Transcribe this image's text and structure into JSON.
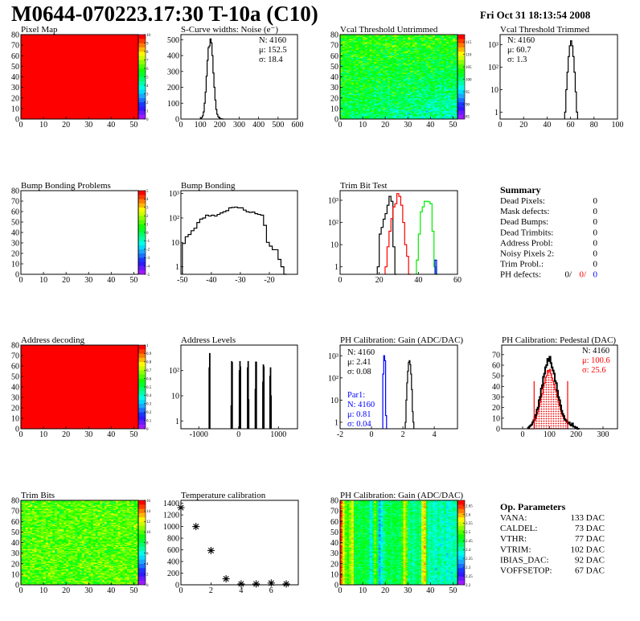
{
  "header": {
    "title": "M0644-070223.17:30 T-10a (C10)",
    "date": "Fri Oct 31 18:13:54 2008"
  },
  "summary": {
    "title": "Summary",
    "rows": [
      {
        "label": "Dead Pixels:",
        "value": "0"
      },
      {
        "label": "Mask defects:",
        "value": "0"
      },
      {
        "label": "Dead Bumps:",
        "value": "0"
      },
      {
        "label": "Dead Trimbits:",
        "value": "0"
      },
      {
        "label": "Address Probl:",
        "value": "0"
      },
      {
        "label": "Noisy Pixels 2:",
        "value": "0"
      },
      {
        "label": "Trim Probl.:",
        "value": "0"
      }
    ],
    "ph_defects": {
      "label": "PH defects:",
      "values": [
        "0/",
        "0/",
        "0"
      ],
      "colors": [
        "#000000",
        "#ff0000",
        "#0000ff"
      ]
    }
  },
  "op_parameters": {
    "title": "Op. Parameters",
    "rows": [
      {
        "label": "VANA:",
        "value": "133 DAC"
      },
      {
        "label": "CALDEL:",
        "value": "73 DAC"
      },
      {
        "label": "VTHR:",
        "value": "77 DAC"
      },
      {
        "label": "VTRIM:",
        "value": "102 DAC"
      },
      {
        "label": "IBIAS_DAC:",
        "value": "92 DAC"
      },
      {
        "label": "VOFFSETOP:",
        "value": "67 DAC"
      }
    ]
  },
  "chart_data": [
    {
      "type": "heatmap",
      "title": "Pixel Map",
      "xlim": [
        0,
        52
      ],
      "ylim": [
        0,
        80
      ],
      "xticks": [
        0,
        10,
        20,
        30,
        40,
        50
      ],
      "yticks": [
        0,
        10,
        20,
        30,
        40,
        50,
        60,
        70,
        80
      ],
      "zlim": [
        0,
        10
      ],
      "zticks": [
        0,
        1,
        2,
        3,
        4,
        5,
        6,
        7,
        8,
        9,
        10
      ],
      "fill": "uniform",
      "value": 10
    },
    {
      "type": "bar",
      "title": "S-Curve widths: Noise (e⁻)",
      "xlim": [
        0,
        600
      ],
      "ylim": [
        0,
        532
      ],
      "yscale": "linear",
      "xticks": [
        0,
        100,
        200,
        300,
        400,
        500,
        600
      ],
      "yticks": [
        0,
        100,
        200,
        300,
        400,
        500
      ],
      "series": [
        {
          "color": "#000000",
          "start": 100,
          "width": 5,
          "values": [
            3,
            8,
            20,
            45,
            100,
            170,
            270,
            370,
            450,
            460,
            505,
            480,
            400,
            290,
            200,
            120,
            60,
            30,
            15,
            8,
            4,
            2,
            1,
            0
          ]
        }
      ],
      "stats": [
        {
          "text": "N: 4160",
          "color": "#000000"
        },
        {
          "text": "μ: 152.5",
          "color": "#000000"
        },
        {
          "text": "σ: 18.4",
          "color": "#000000"
        }
      ]
    },
    {
      "type": "heatmap",
      "title": "Vcal Threshold Untrimmed",
      "xlim": [
        0,
        52
      ],
      "ylim": [
        0,
        80
      ],
      "xticks": [
        0,
        10,
        20,
        30,
        40,
        50
      ],
      "yticks": [
        0,
        10,
        20,
        30,
        40,
        50,
        60,
        70,
        80
      ],
      "zlim": [
        84,
        118
      ],
      "zticks": [
        85,
        90,
        95,
        100,
        105,
        110,
        115
      ],
      "fill": "map"
    },
    {
      "type": "bar",
      "title": "Vcal Threshold Trimmed",
      "xlim": [
        0,
        100
      ],
      "ylim": [
        0.49,
        2850
      ],
      "yscale": "log",
      "xticks": [
        0,
        20,
        40,
        60,
        80,
        100
      ],
      "yticks": [
        1,
        10,
        100,
        1000
      ],
      "ytick_labels": [
        "1",
        "10",
        "10²",
        "10³"
      ],
      "series": [
        {
          "color": "#000000",
          "start": 55,
          "width": 1,
          "values": [
            1,
            10,
            60,
            300,
            900,
            1500,
            900,
            300,
            60,
            8,
            1
          ]
        }
      ],
      "stats": [
        {
          "text": "N: 4160",
          "color": "#000000"
        },
        {
          "text": "μ: 60.7",
          "color": "#000000"
        },
        {
          "text": "σ:  1.3",
          "color": "#000000"
        }
      ]
    },
    {
      "type": "heatmap",
      "title": "Bump Bonding Problems",
      "xlim": [
        0,
        52
      ],
      "ylim": [
        0,
        80
      ],
      "xticks": [
        0,
        10,
        20,
        30,
        40,
        50
      ],
      "yticks": [
        0,
        10,
        20,
        30,
        40,
        50,
        60,
        70,
        80
      ],
      "zlim": [
        -5,
        5
      ],
      "zticks": [
        -5,
        -4,
        -3,
        -2,
        -1,
        0,
        1,
        2,
        3,
        4,
        5
      ],
      "fill": "empty"
    },
    {
      "type": "bar",
      "title": "Bump Bonding",
      "xlim": [
        -50.5,
        -10.3
      ],
      "ylim": [
        0.49,
        1320
      ],
      "yscale": "log",
      "xticks": [
        -50,
        -40,
        -30,
        -20
      ],
      "yticks": [
        1,
        10,
        100,
        1000
      ],
      "ytick_labels": [
        "1",
        "10",
        "10²",
        "10³"
      ],
      "series": [
        {
          "color": "#000000",
          "start": -50,
          "width": 1,
          "values": [
            9,
            17,
            21,
            30,
            38,
            65,
            90,
            100,
            130,
            120,
            130,
            120,
            140,
            160,
            180,
            200,
            260,
            270,
            280,
            260,
            260,
            210,
            180,
            170,
            175,
            150,
            140,
            130,
            50,
            10,
            7,
            5,
            5,
            2,
            1,
            0
          ]
        }
      ]
    },
    {
      "type": "bar",
      "title": "Trim Bit Test",
      "xlim": [
        0,
        60
      ],
      "ylim": [
        0.46,
        2720
      ],
      "yscale": "log",
      "xticks": [
        0,
        20,
        40,
        60
      ],
      "yticks": [
        1,
        10,
        100,
        1000
      ],
      "ytick_labels": [
        "1",
        "10",
        "10²",
        "10³"
      ],
      "series": [
        {
          "color": "#000000",
          "start": 19,
          "width": 1,
          "values": [
            1,
            30,
            60,
            140,
            250,
            600,
            1500,
            900,
            8,
            0
          ]
        },
        {
          "color": "#ff0000",
          "start": 23,
          "width": 1,
          "values": [
            1,
            8,
            40,
            150,
            500,
            700,
            2000,
            1500,
            600,
            100,
            10,
            3,
            0
          ]
        },
        {
          "color": "#00ee00",
          "start": 39,
          "width": 1,
          "values": [
            2,
            30,
            300,
            500,
            900,
            900,
            850,
            700,
            40,
            1,
            0
          ]
        },
        {
          "color": "#0000ff",
          "start": 48.5,
          "width": 0.8,
          "values": [
            2
          ]
        }
      ]
    },
    {
      "type": "heatmap",
      "title": "Address decoding",
      "xlim": [
        0,
        52
      ],
      "ylim": [
        0,
        80
      ],
      "xticks": [
        0,
        10,
        20,
        30,
        40,
        50
      ],
      "yticks": [
        0,
        10,
        20,
        30,
        40,
        50,
        60,
        70,
        80
      ],
      "zlim": [
        0,
        1
      ],
      "zticks": [
        0,
        0.1,
        0.2,
        0.3,
        0.4,
        0.5,
        0.6,
        0.7,
        0.8,
        0.9,
        1
      ],
      "fill": "uniform",
      "value": 1
    },
    {
      "type": "bar",
      "title": "Address Levels",
      "xlim": [
        -1450,
        1480
      ],
      "ylim": [
        0.49,
        1030
      ],
      "yscale": "log",
      "xticks": [
        -1000,
        0,
        1000
      ],
      "yticks": [
        1,
        10,
        100
      ],
      "ytick_labels": [
        "1",
        "10",
        "10²"
      ],
      "spikes": {
        "color": "#000000",
        "width": 10,
        "bins": [
          [
            -740,
            130
          ],
          [
            -728,
            480
          ],
          [
            -188,
            4
          ],
          [
            -176,
            230
          ],
          [
            -164,
            210
          ],
          [
            18,
            100
          ],
          [
            32,
            230
          ],
          [
            44,
            140
          ],
          [
            224,
            130
          ],
          [
            238,
            230
          ],
          [
            250,
            7
          ],
          [
            418,
            18
          ],
          [
            430,
            220
          ],
          [
            442,
            220
          ],
          [
            608,
            35
          ],
          [
            620,
            170
          ],
          [
            632,
            140
          ],
          [
            788,
            60
          ],
          [
            800,
            130
          ],
          [
            812,
            10
          ]
        ]
      }
    },
    {
      "type": "bar",
      "title": "PH Calibration: Gain (ADC/DAC)",
      "xlim": [
        -2,
        5.48
      ],
      "ylim": [
        0.51,
        3030
      ],
      "yscale": "log",
      "xticks": [
        -2,
        0,
        2,
        4
      ],
      "yticks": [
        1,
        10,
        100,
        1000
      ],
      "ytick_labels": [
        "1",
        "10",
        "10²",
        "10³"
      ],
      "series": [
        {
          "color": "#000000",
          "start": 2.15,
          "width": 0.05,
          "values": [
            1,
            10,
            60,
            200,
            500,
            600,
            400,
            150,
            30,
            3,
            1
          ]
        },
        {
          "color": "#0000ff",
          "start": 0.72,
          "width": 0.06,
          "values": [
            150,
            1000,
            600,
            2
          ]
        }
      ],
      "stats": [
        {
          "text": "N: 4160",
          "color": "#000000"
        },
        {
          "text": "μ: 2.41",
          "color": "#000000"
        },
        {
          "text": "σ: 0.08",
          "color": "#000000"
        }
      ],
      "stats2": [
        {
          "text": "Par1:",
          "color": "#0000ff"
        },
        {
          "text": "N: 4160",
          "color": "#0000ff"
        },
        {
          "text": "μ: 0.81",
          "color": "#0000ff"
        },
        {
          "text": "σ: 0.04",
          "color": "#0000ff"
        }
      ]
    },
    {
      "type": "bar",
      "title": "PH Calibration: Pedestal (DAC)",
      "xlim": [
        -78,
        354
      ],
      "ylim": [
        0,
        79
      ],
      "yscale": "linear",
      "xticks": [
        0,
        100,
        200,
        300
      ],
      "yticks": [
        0,
        10,
        20,
        30,
        40,
        50,
        60,
        70
      ],
      "series": [
        {
          "color": "#ff0000",
          "fill": "dots",
          "start": 20,
          "width": 4,
          "values": [
            0,
            0,
            0,
            0,
            0,
            0,
            8,
            10,
            14,
            16,
            21,
            25,
            30,
            33,
            40,
            43,
            48,
            50,
            55,
            54,
            56,
            52,
            48,
            45,
            42,
            37,
            35,
            30,
            25,
            22,
            18,
            14,
            12,
            10,
            8,
            7,
            6,
            0
          ]
        },
        {
          "color": "#000000",
          "start": 20,
          "width": 4,
          "values": [
            1,
            2,
            3,
            4,
            6,
            8,
            11,
            13,
            18,
            20,
            27,
            30,
            38,
            41,
            49,
            52,
            58,
            60,
            66,
            64,
            68,
            62,
            58,
            55,
            52,
            45,
            43,
            36,
            30,
            27,
            22,
            17,
            14,
            12,
            9,
            8,
            7,
            5,
            6,
            4,
            3,
            5,
            2,
            2,
            1,
            1,
            0,
            0
          ]
        }
      ],
      "cuts": {
        "color": "#ff0000",
        "x": [
          43,
          168
        ],
        "height": 45
      },
      "stats": [
        {
          "text": "N: 4160",
          "color": "#000000"
        },
        {
          "text": "μ: 100.6",
          "color": "#ff0000"
        },
        {
          "text": "σ: 25.6",
          "color": "#ff0000"
        }
      ]
    },
    {
      "type": "heatmap",
      "title": "Trim Bits",
      "xlim": [
        0,
        52
      ],
      "ylim": [
        0,
        80
      ],
      "xticks": [
        0,
        10,
        20,
        30,
        40,
        50
      ],
      "yticks": [
        0,
        10,
        20,
        30,
        40,
        50,
        60,
        70,
        80
      ],
      "zlim": [
        0,
        16
      ],
      "zticks": [
        0,
        2,
        4,
        6,
        8,
        10,
        12,
        14,
        16
      ],
      "fill": "map"
    },
    {
      "type": "scatter",
      "title": "Temperature calibration",
      "xlim": [
        0,
        7.8
      ],
      "ylim": [
        0,
        1450
      ],
      "yscale": "linear",
      "xticks": [
        0,
        2,
        4,
        6
      ],
      "yticks": [
        0,
        200,
        400,
        600,
        800,
        1000,
        1200,
        1400
      ],
      "points": [
        [
          0,
          1325
        ],
        [
          1,
          1000
        ],
        [
          2,
          588
        ],
        [
          3,
          103
        ],
        [
          4,
          15
        ],
        [
          5,
          15
        ],
        [
          6,
          30
        ],
        [
          7,
          15
        ]
      ]
    },
    {
      "type": "heatmap",
      "title": "PH Calibration: Gain (ADC/DAC)",
      "xlim": [
        0,
        52
      ],
      "ylim": [
        0,
        80
      ],
      "xticks": [
        0,
        10,
        20,
        30,
        40,
        50
      ],
      "yticks": [
        0,
        10,
        20,
        30,
        40,
        50,
        60,
        70,
        80
      ],
      "zlim": [
        2.2,
        2.68
      ],
      "zticks": [
        2.2,
        2.25,
        2.3,
        2.35,
        2.4,
        2.45,
        2.5,
        2.55,
        2.6,
        2.65
      ],
      "fill": "map"
    }
  ]
}
